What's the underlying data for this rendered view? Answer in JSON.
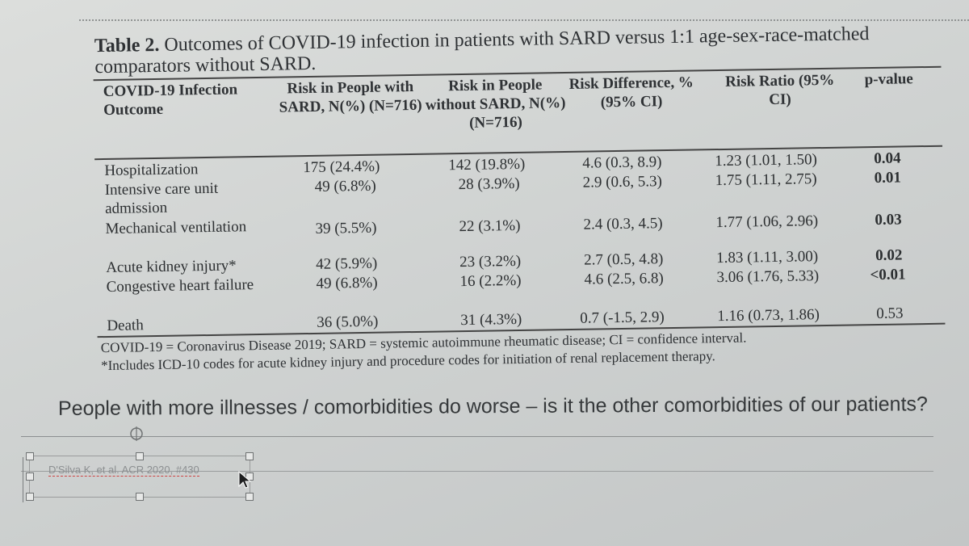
{
  "table": {
    "caption_bold": "Table 2.",
    "caption_text": " Outcomes of COVID-19 infection in patients with SARD versus 1:1 age-sex-race-matched comparators without SARD.",
    "headers": {
      "outcome": "COVID-19 Infection Outcome",
      "risk_sard": "Risk in People with SARD, N(%) (N=716)",
      "risk_no_sard": "Risk in People without SARD, N(%) (N=716)",
      "risk_diff": "Risk Difference, % (95% CI)",
      "risk_ratio": "Risk Ratio (95% CI)",
      "p_value": "p-value"
    },
    "rows": [
      {
        "outcome": "Hospitalization",
        "sard": "175 (24.4%)",
        "no_sard": "142 (19.8%)",
        "diff": "4.6 (0.3, 8.9)",
        "ratio": "1.23 (1.01, 1.50)",
        "p": "0.04"
      },
      {
        "outcome": "Intensive care unit admission",
        "sard": "49 (6.8%)",
        "no_sard": "28 (3.9%)",
        "diff": "2.9 (0.6, 5.3)",
        "ratio": "1.75 (1.11, 2.75)",
        "p": "0.01"
      },
      {
        "outcome": "Mechanical ventilation",
        "sard": "39 (5.5%)",
        "no_sard": "22 (3.1%)",
        "diff": "2.4 (0.3, 4.5)",
        "ratio": "1.77 (1.06, 2.96)",
        "p": "0.03"
      },
      {
        "outcome": "Acute kidney injury*",
        "sard": "42 (5.9%)",
        "no_sard": "23 (3.2%)",
        "diff": "2.7 (0.5, 4.8)",
        "ratio": "1.83 (1.11, 3.00)",
        "p": "0.02"
      },
      {
        "outcome": "Congestive heart failure",
        "sard": "49 (6.8%)",
        "no_sard": "16 (2.2%)",
        "diff": "4.6 (2.5, 6.8)",
        "ratio": "3.06 (1.76, 5.33)",
        "p": "<0.01"
      },
      {
        "outcome": "Death",
        "sard": "36 (5.0%)",
        "no_sard": "31 (4.3%)",
        "diff": "0.7 (-1.5, 2.9)",
        "ratio": "1.16 (0.73, 1.86)",
        "p": "0.53"
      }
    ],
    "footnote_1": "COVID-19 = Coronavirus Disease 2019; SARD = systemic autoimmune rheumatic disease; CI = confidence interval.",
    "footnote_2": "*Includes ICD-10 codes for acute kidney injury and procedure codes for initiation of renal replacement therapy."
  },
  "slide": {
    "body_text": "People with more illnesses / comorbidities do worse – is it the other comorbidities of our patients?",
    "citation": "D'Silva K, et al. ACR 2020, #430"
  }
}
